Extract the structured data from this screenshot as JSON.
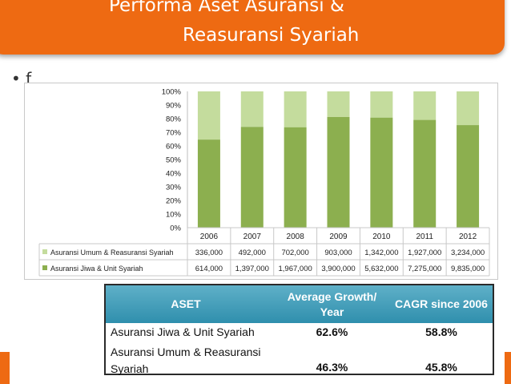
{
  "title": {
    "line1": "Performa Aset Asuransi &",
    "line2": "Reasuransi Syariah"
  },
  "bullet_text": "• f",
  "colors": {
    "accent": "#ee6a12",
    "series_dark": "#8caf4f",
    "series_light": "#c4dc9d",
    "table_header": "#3a98b5"
  },
  "chart_data": {
    "type": "bar",
    "stacked": "percent",
    "categories": [
      "2006",
      "2007",
      "2008",
      "2009",
      "2010",
      "2011",
      "2012"
    ],
    "ylim": [
      0,
      100
    ],
    "y_ticks": [
      "0%",
      "10%",
      "20%",
      "30%",
      "40%",
      "50%",
      "60%",
      "70%",
      "80%",
      "90%",
      "100%"
    ],
    "series": [
      {
        "name": "Asuransi Umum & Reasuransi Syariah",
        "values": [
          336000,
          492000,
          702000,
          903000,
          1342000,
          1927000,
          3234000
        ],
        "labels": [
          "336,000",
          "492,000",
          "702,000",
          "903,000",
          "1,342,000",
          "1,927,000",
          "3,234,000"
        ],
        "color": "#c4dc9d"
      },
      {
        "name": "Asuransi Jiwa & Unit Syariah",
        "values": [
          614000,
          1397000,
          1967000,
          3900000,
          5632000,
          7275000,
          9835000
        ],
        "labels": [
          "614,000",
          "1,397,000",
          "1,967,000",
          "3,900,000",
          "5,632,000",
          "7,275,000",
          "9,835,000"
        ],
        "color": "#8caf4f"
      }
    ]
  },
  "table": {
    "headers": [
      "ASET",
      "Average Growth/ Year",
      "CAGR since 2006"
    ],
    "rows": [
      {
        "name": "Asuransi Jiwa & Unit Syariah",
        "growth": "62.6%",
        "cagr": "58.8%"
      },
      {
        "name": "Asuransi Umum & Reasuransi Syariah",
        "growth": "46.3%",
        "cagr": "45.8%"
      }
    ]
  }
}
